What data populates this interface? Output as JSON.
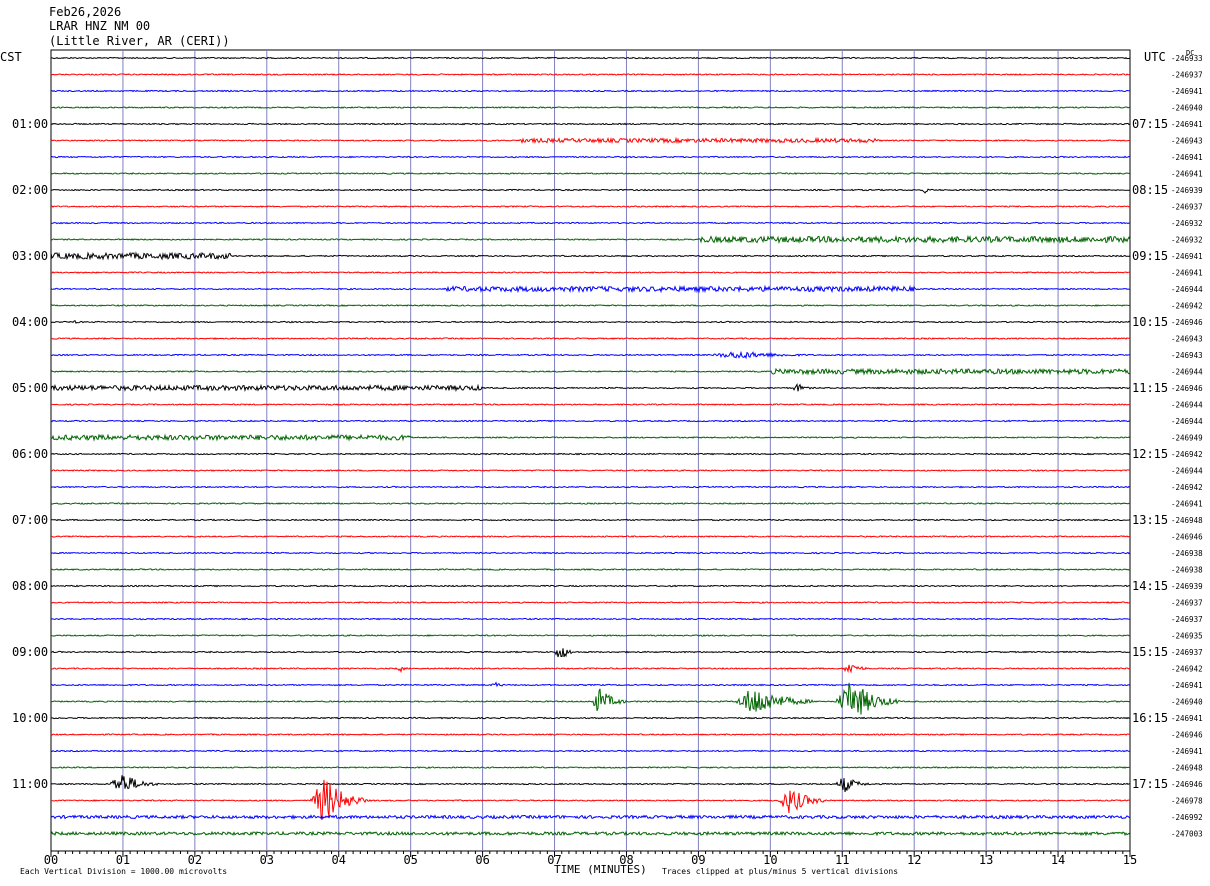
{
  "header": {
    "date": "Feb26,2026",
    "station": "LRAR HNZ NM 00",
    "location": "(Little River, AR (CERI))"
  },
  "zones": {
    "left": "CST",
    "right": "UTC",
    "dc_label": "DC"
  },
  "footer": {
    "left_note": "Each Vertical Division = 1000.00 microvolts",
    "right_note": "Traces clipped at plus/minus 5 vertical divisions",
    "xlabel": "TIME (MINUTES)"
  },
  "colors": {
    "cycle": [
      "#000000",
      "#ff0000",
      "#0000ff",
      "#006400"
    ],
    "grid": "#8080c0"
  },
  "chart_data": {
    "type": "line",
    "title": "LRAR HNZ NM 00",
    "xlabel": "TIME (MINUTES)",
    "ylabel": "",
    "xlim": [
      0,
      15
    ],
    "x_ticks": [
      "00",
      "01",
      "02",
      "03",
      "04",
      "05",
      "06",
      "07",
      "08",
      "09",
      "10",
      "11",
      "12",
      "13",
      "14",
      "15"
    ],
    "left_hour_labels": [
      "01:00",
      "02:00",
      "03:00",
      "04:00",
      "05:00",
      "06:00",
      "07:00",
      "08:00",
      "09:00",
      "10:00",
      "11:00"
    ],
    "right_hour_labels": [
      "07:15",
      "08:15",
      "09:15",
      "10:15",
      "11:15",
      "12:15",
      "13:15",
      "14:15",
      "15:15",
      "16:15",
      "17:15"
    ],
    "trace_count": 48,
    "dc_offsets": [
      "246933",
      "246937",
      "246941",
      "246940",
      "246941",
      "246943",
      "246941",
      "246941",
      "246939",
      "246937",
      "246932",
      "246932",
      "246941",
      "246941",
      "246944",
      "246942",
      "246946",
      "246943",
      "246943",
      "246944",
      "246946",
      "246944",
      "246944",
      "246949",
      "246942",
      "246944",
      "246942",
      "246941",
      "246948",
      "246946",
      "246938",
      "246938",
      "246939",
      "246937",
      "246937",
      "246935",
      "246937",
      "246942",
      "246941",
      "246940",
      "246941",
      "246946",
      "246941",
      "246948",
      "246946",
      "246978",
      "246992",
      "247003"
    ],
    "events": [
      {
        "trace": 5,
        "start": 6.5,
        "end": 11.5,
        "amp": 2,
        "kind": "noise"
      },
      {
        "trace": 8,
        "start": 12.1,
        "end": 12.3,
        "amp": 3,
        "kind": "burst"
      },
      {
        "trace": 11,
        "start": 9,
        "end": 15,
        "amp": 3,
        "kind": "noise"
      },
      {
        "trace": 12,
        "start": 0,
        "end": 2.5,
        "amp": 3,
        "kind": "noise"
      },
      {
        "trace": 14,
        "start": 5.5,
        "end": 12,
        "amp": 2.5,
        "kind": "noise"
      },
      {
        "trace": 16,
        "start": 0.3,
        "end": 0.5,
        "amp": 2,
        "kind": "burst"
      },
      {
        "trace": 18,
        "start": 9.1,
        "end": 10.9,
        "amp": 4,
        "kind": "burst"
      },
      {
        "trace": 19,
        "start": 10,
        "end": 15,
        "amp": 2.5,
        "kind": "noise"
      },
      {
        "trace": 20,
        "start": 0,
        "end": 6,
        "amp": 2.5,
        "kind": "noise"
      },
      {
        "trace": 20,
        "start": 10.3,
        "end": 10.6,
        "amp": 5,
        "kind": "burst"
      },
      {
        "trace": 23,
        "start": 0,
        "end": 5,
        "amp": 2.5,
        "kind": "noise"
      },
      {
        "trace": 36,
        "start": 7.0,
        "end": 7.3,
        "amp": 10,
        "kind": "burst"
      },
      {
        "trace": 37,
        "start": 4.8,
        "end": 5.0,
        "amp": 4,
        "kind": "burst"
      },
      {
        "trace": 37,
        "start": 11.0,
        "end": 11.4,
        "amp": 7,
        "kind": "burst"
      },
      {
        "trace": 38,
        "start": 6.1,
        "end": 6.4,
        "amp": 3,
        "kind": "burst"
      },
      {
        "trace": 39,
        "start": 7.5,
        "end": 8.0,
        "amp": 14,
        "kind": "burst"
      },
      {
        "trace": 39,
        "start": 9.5,
        "end": 10.6,
        "amp": 16,
        "kind": "burst"
      },
      {
        "trace": 39,
        "start": 10.9,
        "end": 11.8,
        "amp": 22,
        "kind": "burst"
      },
      {
        "trace": 44,
        "start": 0.8,
        "end": 1.5,
        "amp": 12,
        "kind": "burst"
      },
      {
        "trace": 44,
        "start": 10.9,
        "end": 11.4,
        "amp": 9,
        "kind": "burst"
      },
      {
        "trace": 45,
        "start": 3.6,
        "end": 4.4,
        "amp": 24,
        "kind": "burst"
      },
      {
        "trace": 45,
        "start": 10.1,
        "end": 10.8,
        "amp": 14,
        "kind": "burst"
      },
      {
        "trace": 46,
        "start": 0,
        "end": 15,
        "amp": 1.5,
        "kind": "noise"
      },
      {
        "trace": 47,
        "start": 0,
        "end": 15,
        "amp": 1.5,
        "kind": "noise"
      }
    ]
  }
}
